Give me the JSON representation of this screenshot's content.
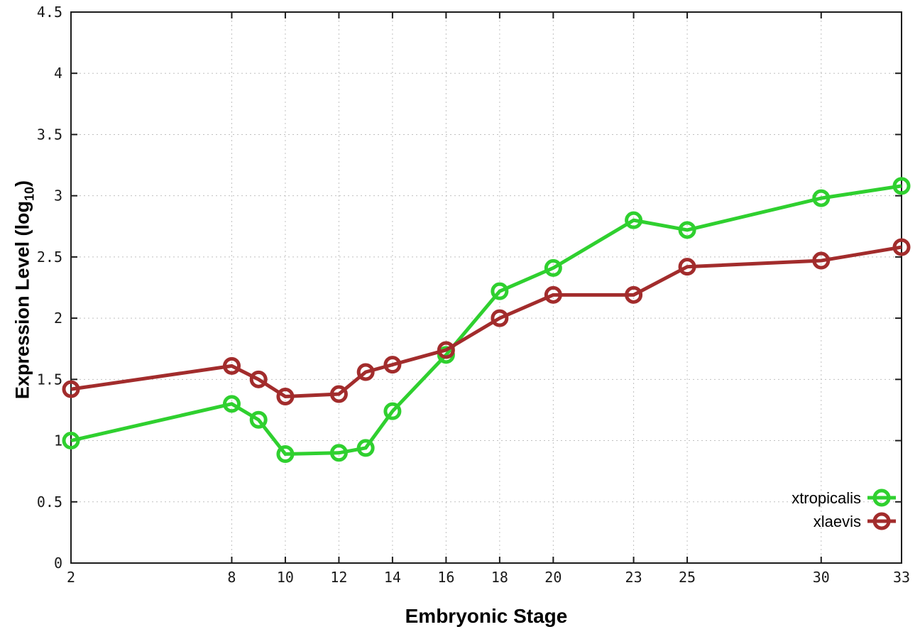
{
  "chart_data": {
    "type": "line",
    "title": "",
    "xlabel": "Embryonic Stage",
    "ylabel": "Expression Level (log10)",
    "ylabel_prefix": "Expression Level (log",
    "ylabel_subscript": "10",
    "ylabel_suffix": ")",
    "x": [
      2,
      8,
      9,
      10,
      12,
      13,
      14,
      16,
      18,
      20,
      23,
      25,
      30,
      33
    ],
    "series": [
      {
        "name": "xtropicalis",
        "color": "#2fd02f",
        "values": [
          1.0,
          1.3,
          1.17,
          0.89,
          0.9,
          0.94,
          1.24,
          1.7,
          2.22,
          2.41,
          2.8,
          2.72,
          2.98,
          3.08
        ]
      },
      {
        "name": "xlaevis",
        "color": "#a22c2c",
        "values": [
          1.42,
          1.61,
          1.5,
          1.36,
          1.38,
          1.56,
          1.62,
          1.74,
          2.0,
          2.19,
          2.19,
          2.42,
          2.47,
          2.58
        ]
      }
    ],
    "x_ticks": [
      2,
      8,
      10,
      12,
      14,
      16,
      18,
      20,
      23,
      25,
      30,
      33
    ],
    "x_tick_labels": [
      "2",
      "8",
      "10",
      "12",
      "14",
      "16",
      "18",
      "20",
      "23",
      "25",
      "30",
      "33"
    ],
    "y_ticks": [
      0,
      0.5,
      1,
      1.5,
      2,
      2.5,
      3,
      3.5,
      4,
      4.5
    ],
    "y_tick_labels": [
      "0",
      "0.5",
      "1",
      "1.5",
      "2",
      "2.5",
      "3",
      "3.5",
      "4",
      "4.5"
    ],
    "xlim": [
      2,
      33
    ],
    "ylim": [
      0,
      4.5
    ],
    "grid": true,
    "grid_style": "dotted",
    "legend_position": "inside-bottom-right",
    "legend_entries": [
      "xtropicalis",
      "xlaevis"
    ],
    "background_color": "#ffffff",
    "axis_color": "#1c1c1c",
    "grid_color": "#c0c0c0",
    "tick_label_color": "#1a1a1a",
    "marker": "open-circle"
  }
}
